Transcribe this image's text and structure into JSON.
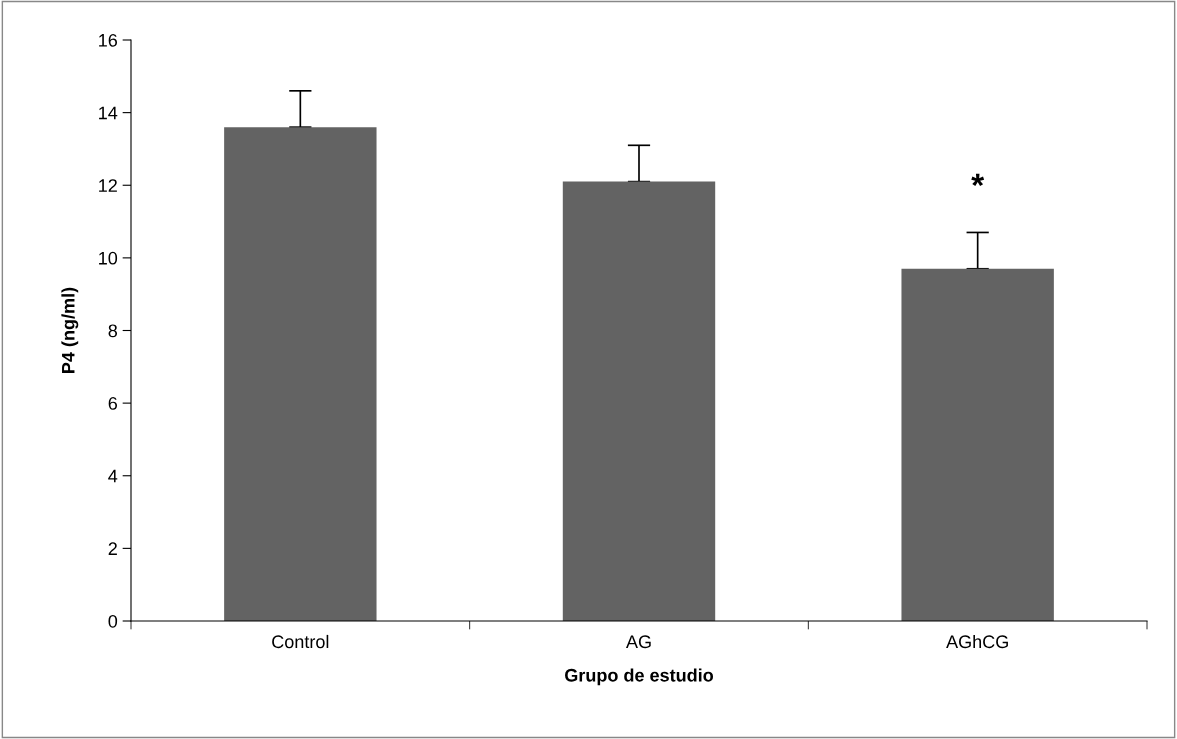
{
  "chart_data": {
    "type": "bar",
    "xlabel": "Grupo de estudio",
    "ylabel": "P4 (ng/ml)",
    "categories": [
      "Control",
      "AG",
      "AGhCG"
    ],
    "series": [
      {
        "color": "#636363",
        "values": [
          13.6,
          12.1,
          9.7
        ],
        "errors": [
          [
            13.6,
            14.6
          ],
          [
            12.1,
            13.1
          ],
          [
            9.7,
            10.7
          ]
        ]
      }
    ],
    "ylim": [
      0,
      16
    ],
    "yticks": [
      0,
      2,
      4,
      6,
      8,
      10,
      12,
      14,
      16
    ],
    "annotations": [
      "*"
    ]
  }
}
